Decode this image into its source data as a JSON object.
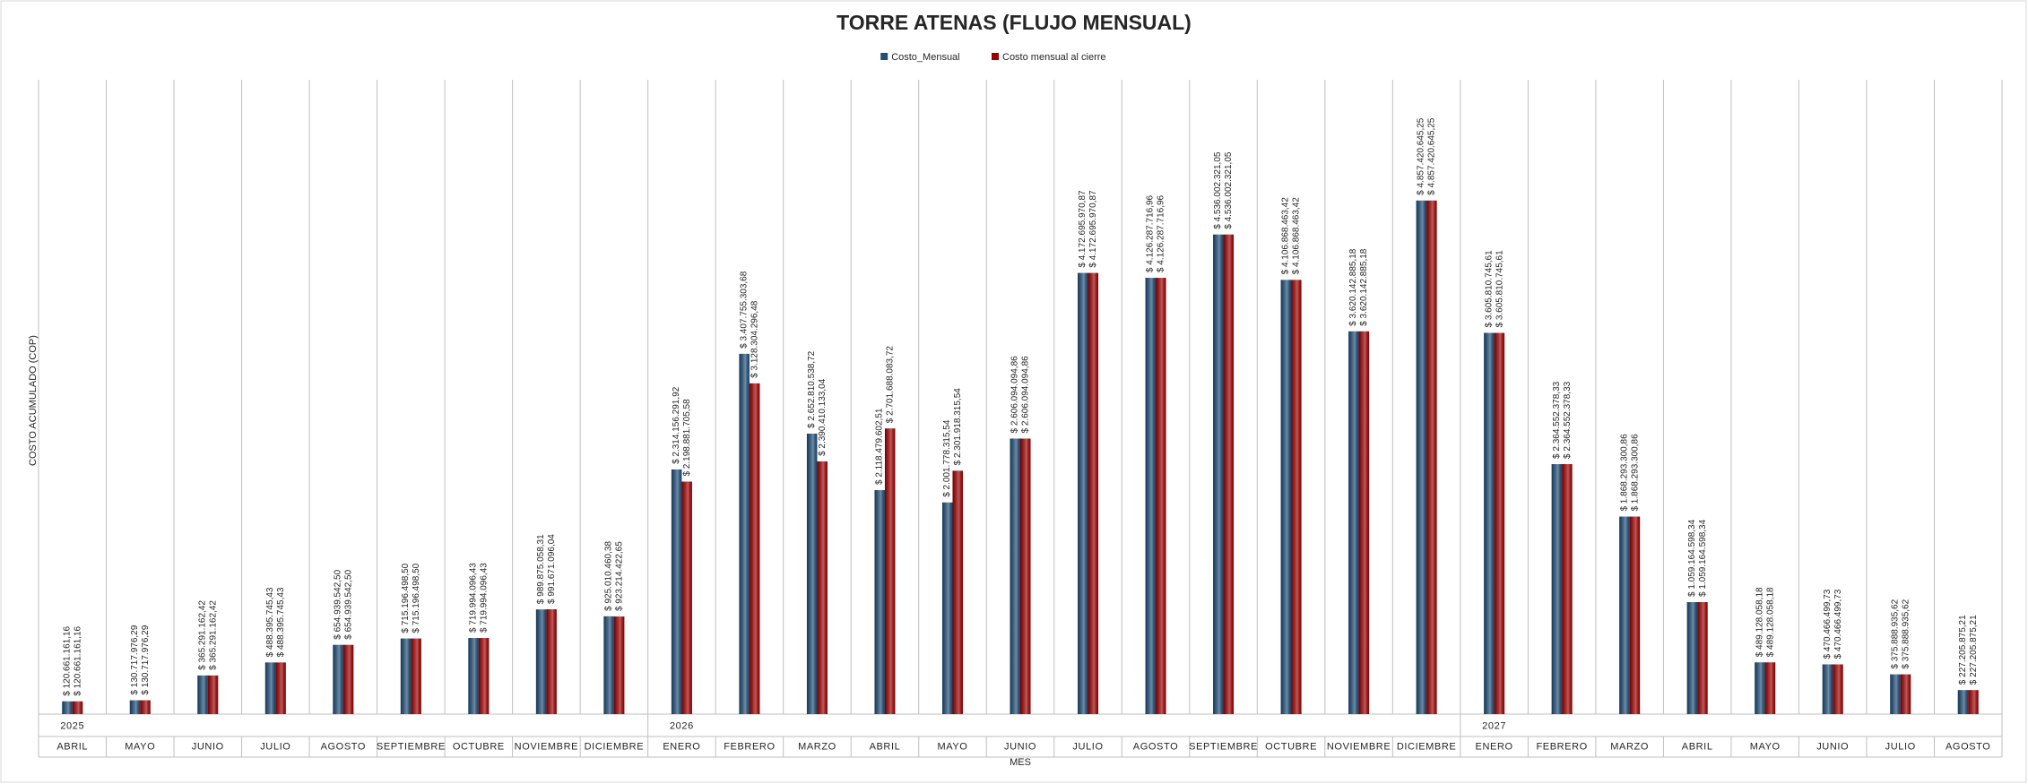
{
  "chart_data": {
    "type": "bar",
    "title": "TORRE ATENAS (FLUJO MENSUAL)",
    "y_label": "COSTO ACUMULADO (COP)",
    "x_label": "MES",
    "categories": [
      "ABRIL",
      "MAYO",
      "JUNIO",
      "JULIO",
      "AGOSTO",
      "SEPTIEMBRE",
      "OCTUBRE",
      "NOVIEMBRE",
      "DICIEMBRE",
      "ENERO",
      "FEBRERO",
      "MARZO",
      "ABRIL",
      "MAYO",
      "JUNIO",
      "JULIO",
      "AGOSTO",
      "SEPTIEMBRE",
      "OCTUBRE",
      "NOVIEMBRE",
      "DICIEMBRE",
      "ENERO",
      "FEBRERO",
      "MARZO",
      "ABRIL",
      "MAYO",
      "JUNIO",
      "JULIO",
      "AGOSTO"
    ],
    "years": [
      "2025",
      null,
      null,
      null,
      null,
      null,
      null,
      null,
      null,
      "2026",
      null,
      null,
      null,
      null,
      null,
      null,
      null,
      null,
      null,
      null,
      null,
      "2027",
      null,
      null,
      null,
      null,
      null,
      null,
      null
    ],
    "series": [
      {
        "name": "Costo_Mensual",
        "color": "#1f4e79",
        "values": [
          120661161.16,
          130717976.29,
          365291162.42,
          488395745.43,
          654939542.5,
          715196498.5,
          719994096.43,
          989875058.31,
          925010460.38,
          2314156291.92,
          3407755303.68,
          2652810538.72,
          2118479602.51,
          2001778315.54,
          2606094094.86,
          4172695970.87,
          4126287716.96,
          4536002321.05,
          4106868463.42,
          3620142885.18,
          4857420645.25,
          3605810745.61,
          2364552378.33,
          1868293300.86,
          1059164598.34,
          489128058.18,
          470466499.73,
          375888935.62,
          227205875.21
        ],
        "value_labels": [
          "$ 120.661.161,16",
          "$ 130.717.976,29",
          "$ 365.291.162,42",
          "$ 488.395.745,43",
          "$ 654.939.542,50",
          "$ 715.196.498,50",
          "$ 719.994.096,43",
          "$ 989.875.058,31",
          "$ 925.010.460,38",
          "$ 2.314.156.291,92",
          "$ 3.407.755.303,68",
          "$ 2.652.810.538,72",
          "$ 2.118.479.602,51",
          "$ 2.001.778.315,54",
          "$ 2.606.094.094,86",
          "$ 4.172.695.970,87",
          "$ 4.126.287.716,96",
          "$ 4.536.002.321,05",
          "$ 4.106.868.463,42",
          "$ 3.620.142.885,18",
          "$ 4.857.420.645,25",
          "$ 3.605.810.745,61",
          "$ 2.364.552.378,33",
          "$ 1.868.293.300,86",
          "$ 1.059.164.598,34",
          "$ 489.128.058,18",
          "$ 470.466.499,73",
          "$ 375.888.935,62",
          "$ 227.205.875,21"
        ]
      },
      {
        "name": "Costo mensual al cierre",
        "color": "#a00000",
        "values": [
          120661161.16,
          130717976.29,
          365291162.42,
          488395745.43,
          654939542.5,
          715196498.5,
          719994096.43,
          991671096.04,
          923214422.65,
          2198881705.58,
          3128304296.48,
          2390410133.04,
          2701688083.72,
          2301918315.54,
          2606094094.86,
          4172695970.87,
          4126287716.96,
          4536002321.05,
          4106868463.42,
          3620142885.18,
          4857420645.25,
          3605810745.61,
          2364552378.33,
          1868293300.86,
          1059164598.34,
          489128058.18,
          470466499.73,
          375888935.62,
          227205875.21
        ],
        "value_labels": [
          "$ 120.661.161,16",
          "$ 130.717.976,29",
          "$ 365.291.162,42",
          "$ 488.395.745,43",
          "$ 654.939.542,50",
          "$ 715.196.498,50",
          "$ 719.994.096,43",
          "$ 991.671.096,04",
          "$ 923.214.422,65",
          "$ 2.198.881.705,58",
          "$ 3.128.304.296,48",
          "$ 2.390.410.133,04",
          "$ 2.701.688.083,72",
          "$ 2.301.918.315,54",
          "$ 2.606.094.094,86",
          "$ 4.172.695.970,87",
          "$ 4.126.287.716,96",
          "$ 4.536.002.321,05",
          "$ 4.106.868.463,42",
          "$ 3.620.142.885,18",
          "$ 4.857.420.645,25",
          "$ 3.605.810.745,61",
          "$ 2.364.552.378,33",
          "$ 1.868.293.300,86",
          "$ 1.059.164.598,34",
          "$ 489.128.058,18",
          "$ 470.466.499,73",
          "$ 375.888.935,62",
          "$ 227.205.875,21"
        ]
      }
    ],
    "ylim": [
      0,
      6000000000
    ],
    "xgrid": true,
    "legend": "top"
  }
}
